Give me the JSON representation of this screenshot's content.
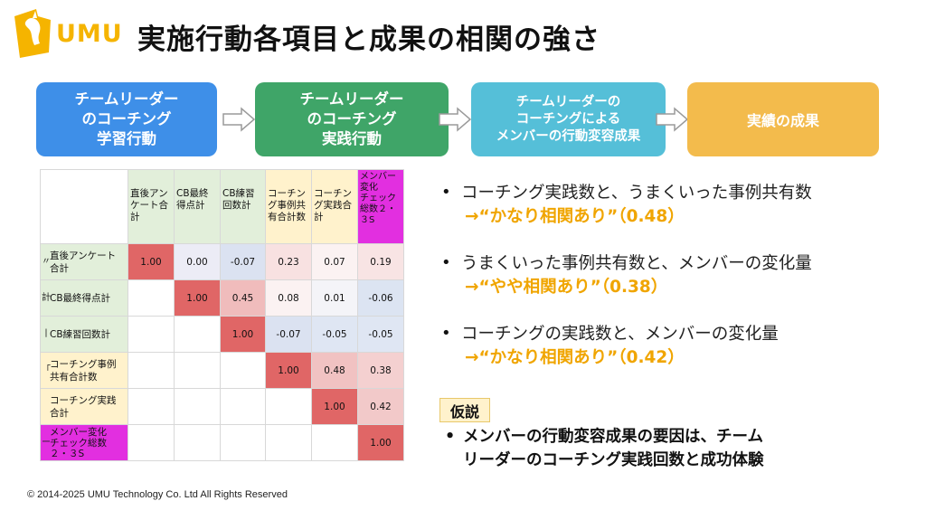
{
  "header": {
    "logo_text": "UMU",
    "logo_icon": "umu-horse-logo",
    "title": "実施行動各項目と成果の相関の強さ"
  },
  "flow": [
    {
      "label": "チームリーダー\nのコーチング\n学習行動",
      "color": "#3E8FE8"
    },
    {
      "label": "チームリーダー\nのコーチング\n実践行動",
      "color": "#3FA568"
    },
    {
      "label": "チームリーダーの\nコーチングによる\nメンバーの行動変容成果",
      "color": "#55BFD8"
    },
    {
      "label": "実績の成果",
      "color": "#F3BB4C"
    }
  ],
  "matrix": {
    "columns": [
      "直後アン\nケート合\n計",
      "CB最終\n得点計",
      "CB練習\n回数計",
      "コーチン\nグ事例共\n有合計数",
      "コーチン\nグ実践合\n計",
      "メンバー\n変化\nチェック\n総数２・\n３S"
    ],
    "rows": [
      {
        "label": "直後アンケート\n合計",
        "cut": "〃",
        "values": [
          "1.00",
          "0.00",
          "-0.07",
          "0.23",
          "0.07",
          "0.19"
        ]
      },
      {
        "label": "CB最終得点計",
        "cut": "計",
        "values": [
          "",
          "1.00",
          "0.45",
          "0.08",
          "0.01",
          "-0.06"
        ]
      },
      {
        "label": "CB練習回数計",
        "cut": "丨",
        "values": [
          "",
          "",
          "1.00",
          "-0.07",
          "-0.05",
          "-0.05"
        ]
      },
      {
        "label": "コーチング事例\n共有合計数",
        "cut": "「",
        "values": [
          "",
          "",
          "",
          "1.00",
          "0.48",
          "0.38"
        ]
      },
      {
        "label": "コーチング実践\n合計",
        "cut": "",
        "values": [
          "",
          "",
          "",
          "",
          "1.00",
          "0.42"
        ]
      },
      {
        "label": "メンバー変化\nチェック総数\n２・３S",
        "cut": "ー",
        "values": [
          "",
          "",
          "",
          "",
          "",
          "1.00"
        ]
      }
    ]
  },
  "bullets": [
    {
      "text": "コーチング実践数と、うまくいった事例共有数",
      "result": "→“かなり相関あり”（0.48）"
    },
    {
      "text": "うまくいった事例共有数と、メンバーの変化量",
      "result": "→“やや相関あり”（0.38）"
    },
    {
      "text": "コーチングの実践数と、メンバーの変化量",
      "result": "→“かなり相関あり”（0.42）"
    }
  ],
  "hypothesis": {
    "label": "仮説",
    "text": "メンバーの行動変容成果の要因は、チーム\nリーダーのコーチング実践回数と成功体験"
  },
  "footer": {
    "copyright": "© 2014-2025 UMU Technology Co. Ltd All Rights Reserved"
  },
  "colors": {
    "accent_orange": "#F0A500",
    "logo_yellow": "#F5B400"
  }
}
